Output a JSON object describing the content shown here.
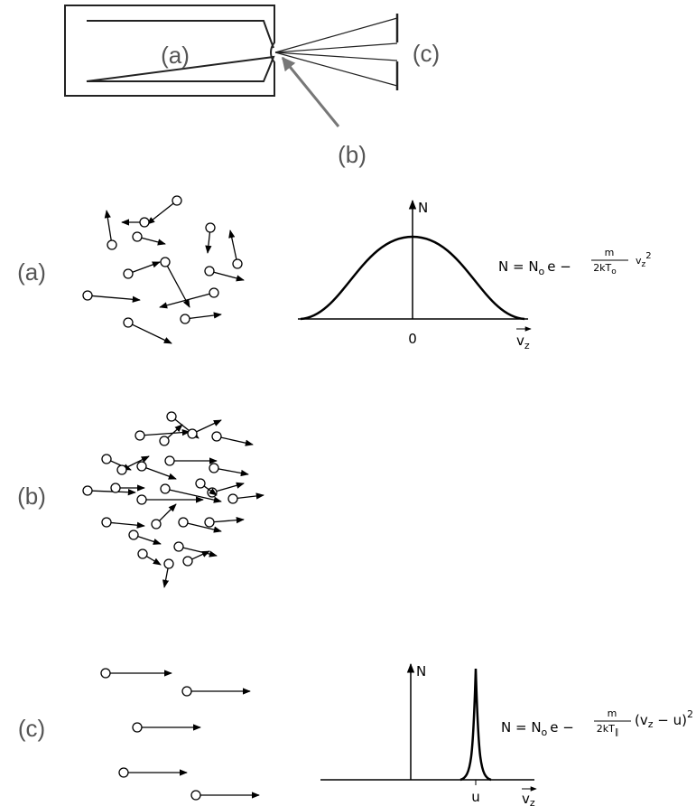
{
  "apparatus": {
    "labels": {
      "a": "(a)",
      "b": "(b)",
      "c": "(c)"
    }
  },
  "rows": {
    "a": "(a)",
    "b": "(b)",
    "c": "(c)"
  },
  "graph_a": {
    "y_label": "N",
    "origin": "0",
    "x_label": "v",
    "x_label_sub": "z",
    "formula": {
      "prefix": "N = N",
      "prefix_sub": "o",
      "base": "e −",
      "num": "m",
      "den": "2kT",
      "den_sub": "o",
      "tail": "v",
      "tail_sub": "z",
      "tail_sup": "2"
    }
  },
  "graph_c": {
    "y_label": "N",
    "peak": "u",
    "x_label": "v",
    "x_label_sub": "z",
    "formula": {
      "prefix": "N = N",
      "prefix_sub": "o",
      "base": "e −",
      "num": "m",
      "den": "2kT",
      "den_sub": "∥",
      "tail": "(v",
      "tail_sub": "z",
      "tail_rest": " − u)",
      "tail_sup": "2"
    }
  }
}
